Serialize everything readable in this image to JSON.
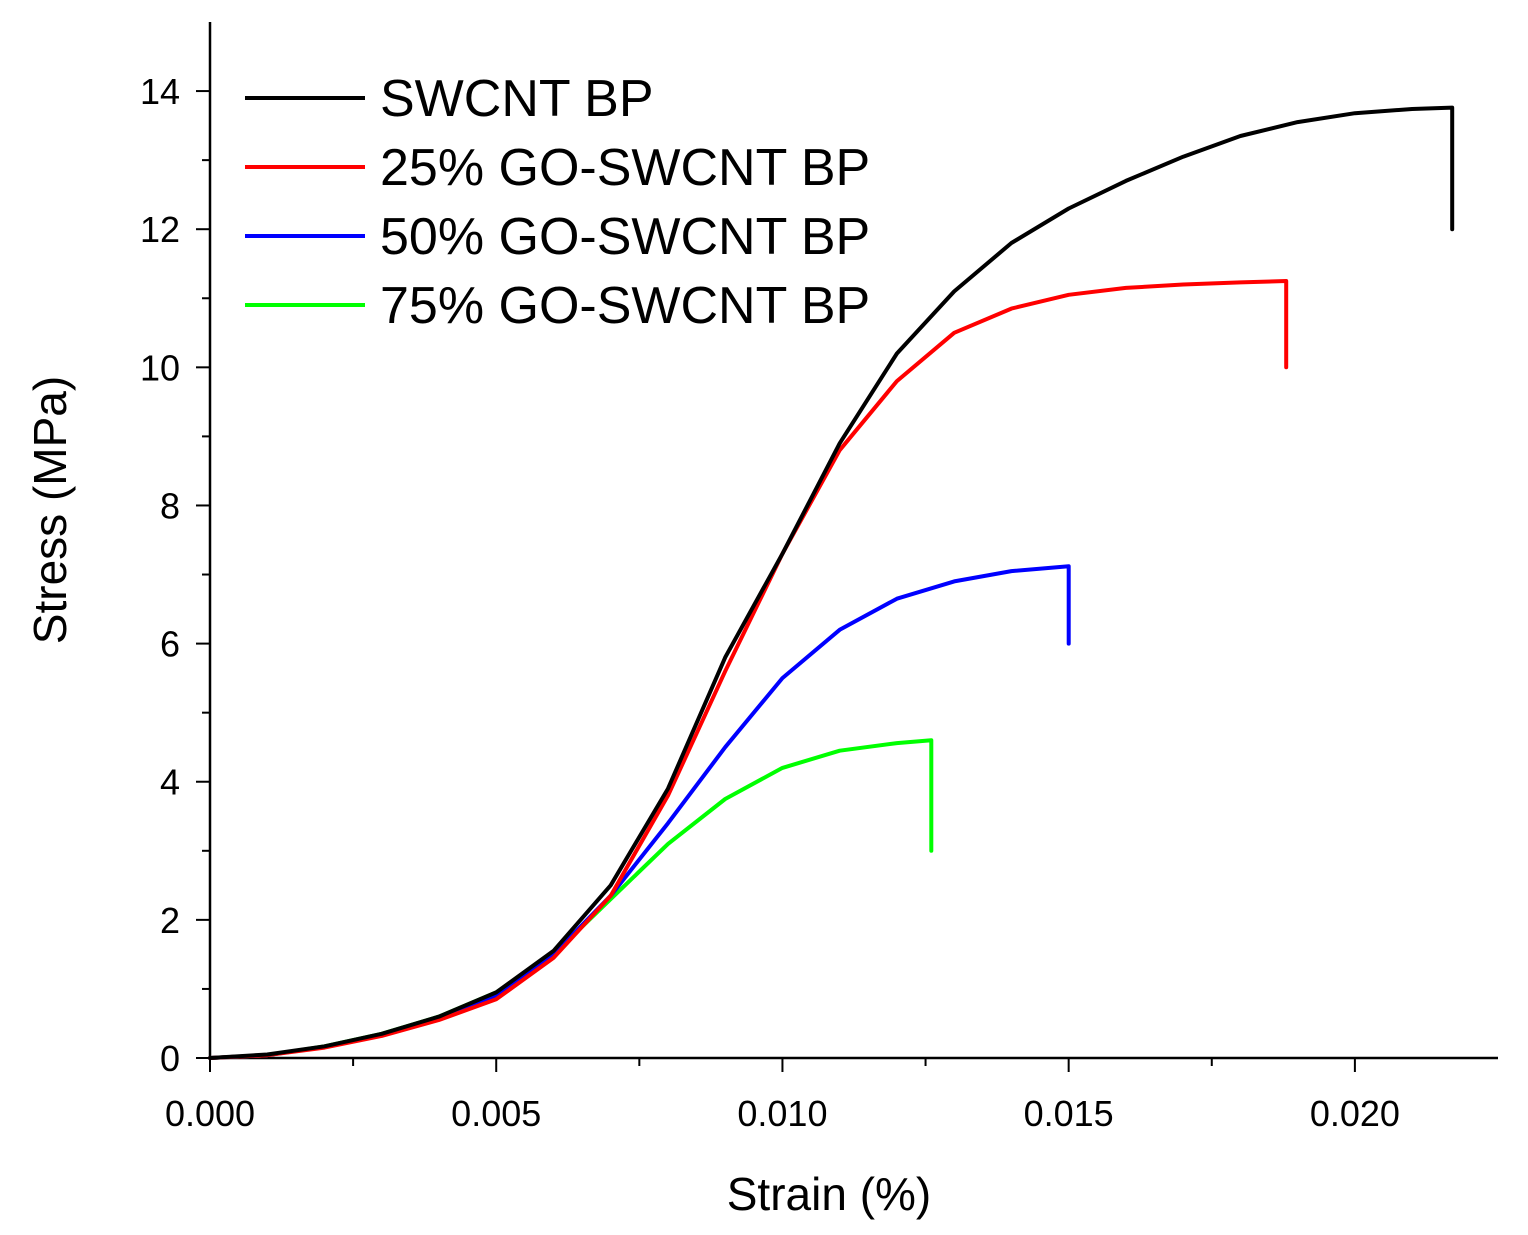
{
  "chart_data": {
    "type": "line",
    "title": "",
    "xlabel": "Strain (%)",
    "ylabel": "Stress (MPa)",
    "xlim": [
      0,
      0.0225
    ],
    "ylim": [
      0,
      15
    ],
    "xticks": [
      0.0,
      0.005,
      0.01,
      0.015,
      0.02
    ],
    "xtick_labels": [
      "0.000",
      "0.005",
      "0.010",
      "0.015",
      "0.020"
    ],
    "yticks": [
      0,
      2,
      4,
      6,
      8,
      10,
      12,
      14
    ],
    "ytick_labels": [
      "0",
      "2",
      "4",
      "6",
      "8",
      "10",
      "12",
      "14"
    ],
    "grid": false,
    "legend_position": "top-left",
    "series": [
      {
        "name": "SWCNT BP",
        "color": "#000000",
        "x": [
          0,
          0.001,
          0.002,
          0.003,
          0.004,
          0.005,
          0.006,
          0.007,
          0.008,
          0.009,
          0.01,
          0.011,
          0.012,
          0.013,
          0.014,
          0.015,
          0.016,
          0.017,
          0.018,
          0.019,
          0.02,
          0.021,
          0.0217,
          0.0217
        ],
        "y": [
          0,
          0.05,
          0.17,
          0.35,
          0.6,
          0.95,
          1.55,
          2.5,
          3.9,
          5.8,
          7.3,
          8.9,
          10.2,
          11.1,
          11.8,
          12.3,
          12.7,
          13.05,
          13.35,
          13.55,
          13.68,
          13.74,
          13.76,
          12.0
        ]
      },
      {
        "name": "25% GO-SWCNT BP",
        "color": "#ff0000",
        "x": [
          0,
          0.001,
          0.002,
          0.003,
          0.004,
          0.005,
          0.006,
          0.007,
          0.008,
          0.009,
          0.01,
          0.011,
          0.012,
          0.013,
          0.014,
          0.015,
          0.016,
          0.017,
          0.018,
          0.0188,
          0.0188
        ],
        "y": [
          0,
          0.04,
          0.15,
          0.32,
          0.55,
          0.85,
          1.45,
          2.35,
          3.8,
          5.6,
          7.3,
          8.8,
          9.8,
          10.5,
          10.85,
          11.05,
          11.15,
          11.2,
          11.23,
          11.25,
          10.0
        ]
      },
      {
        "name": "50% GO-SWCNT BP",
        "color": "#0000ff",
        "x": [
          0,
          0.001,
          0.002,
          0.003,
          0.004,
          0.005,
          0.006,
          0.007,
          0.008,
          0.009,
          0.01,
          0.011,
          0.012,
          0.013,
          0.014,
          0.015,
          0.015
        ],
        "y": [
          0,
          0.04,
          0.16,
          0.33,
          0.58,
          0.9,
          1.5,
          2.35,
          3.4,
          4.5,
          5.5,
          6.2,
          6.65,
          6.9,
          7.05,
          7.12,
          6.0
        ]
      },
      {
        "name": "75% GO-SWCNT BP",
        "color": "#00ff00",
        "x": [
          0,
          0.001,
          0.002,
          0.003,
          0.004,
          0.005,
          0.006,
          0.007,
          0.008,
          0.009,
          0.01,
          0.011,
          0.012,
          0.0126,
          0.0126
        ],
        "y": [
          0,
          0.04,
          0.17,
          0.35,
          0.6,
          0.95,
          1.5,
          2.3,
          3.1,
          3.75,
          4.2,
          4.45,
          4.56,
          4.6,
          3.0
        ]
      }
    ]
  }
}
